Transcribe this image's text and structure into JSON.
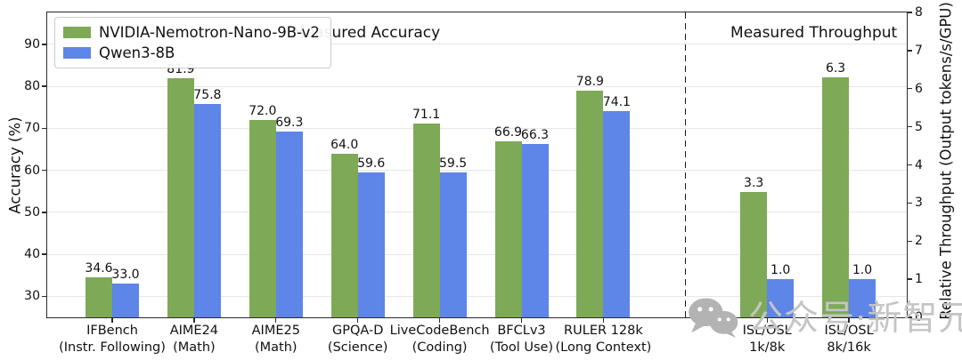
{
  "watermark": {
    "text": "公众号·新智元",
    "icon": "wechat-icon"
  },
  "chart_data": {
    "type": "bar",
    "title_left": "Measured Accuracy",
    "title_right": "Measured Throughput",
    "ylabel_left": "Accuracy (%)",
    "ylabel_right": "Relative Throughput (Output tokens/s/GPU)",
    "legend": [
      {
        "name": "NVIDIA-Nemotron-Nano-9B-v2",
        "color": "#7EA956"
      },
      {
        "name": "Qwen3-8B",
        "color": "#5E85E8"
      }
    ],
    "legend_position": "upper left",
    "grid": true,
    "left_axis": {
      "ticks": [
        30,
        40,
        50,
        60,
        70,
        80,
        90
      ],
      "min": 25,
      "max": 97.6
    },
    "right_axis": {
      "ticks": [
        0,
        1,
        2,
        3,
        4,
        5,
        6,
        7,
        8
      ],
      "min": 0,
      "max": 8
    },
    "divider_slot": 7,
    "num_slots": 10,
    "groups": [
      {
        "label": "IFBench",
        "sublabel": "(Instr. Following)",
        "axis": "left",
        "slot": 0,
        "values": [
          34.6,
          33.0
        ]
      },
      {
        "label": "AIME24",
        "sublabel": "(Math)",
        "axis": "left",
        "slot": 1,
        "values": [
          81.9,
          75.8
        ]
      },
      {
        "label": "AIME25",
        "sublabel": "(Math)",
        "axis": "left",
        "slot": 2,
        "values": [
          72.0,
          69.3
        ]
      },
      {
        "label": "GPQA-D",
        "sublabel": "(Science)",
        "axis": "left",
        "slot": 3,
        "values": [
          64.0,
          59.6
        ]
      },
      {
        "label": "LiveCodeBench",
        "sublabel": "(Coding)",
        "axis": "left",
        "slot": 4,
        "values": [
          71.1,
          59.5
        ]
      },
      {
        "label": "BFCLv3",
        "sublabel": "(Tool Use)",
        "axis": "left",
        "slot": 5,
        "values": [
          66.9,
          66.3
        ]
      },
      {
        "label": "RULER 128k",
        "sublabel": "(Long Context)",
        "axis": "left",
        "slot": 6,
        "values": [
          78.9,
          74.1
        ]
      },
      {
        "label": "ISL/OSL",
        "sublabel": "1k/8k",
        "axis": "right",
        "slot": 8,
        "values": [
          3.3,
          1.0
        ]
      },
      {
        "label": "ISL/OSL",
        "sublabel": "8k/16k",
        "axis": "right",
        "slot": 9,
        "values": [
          6.3,
          1.0
        ]
      }
    ]
  }
}
